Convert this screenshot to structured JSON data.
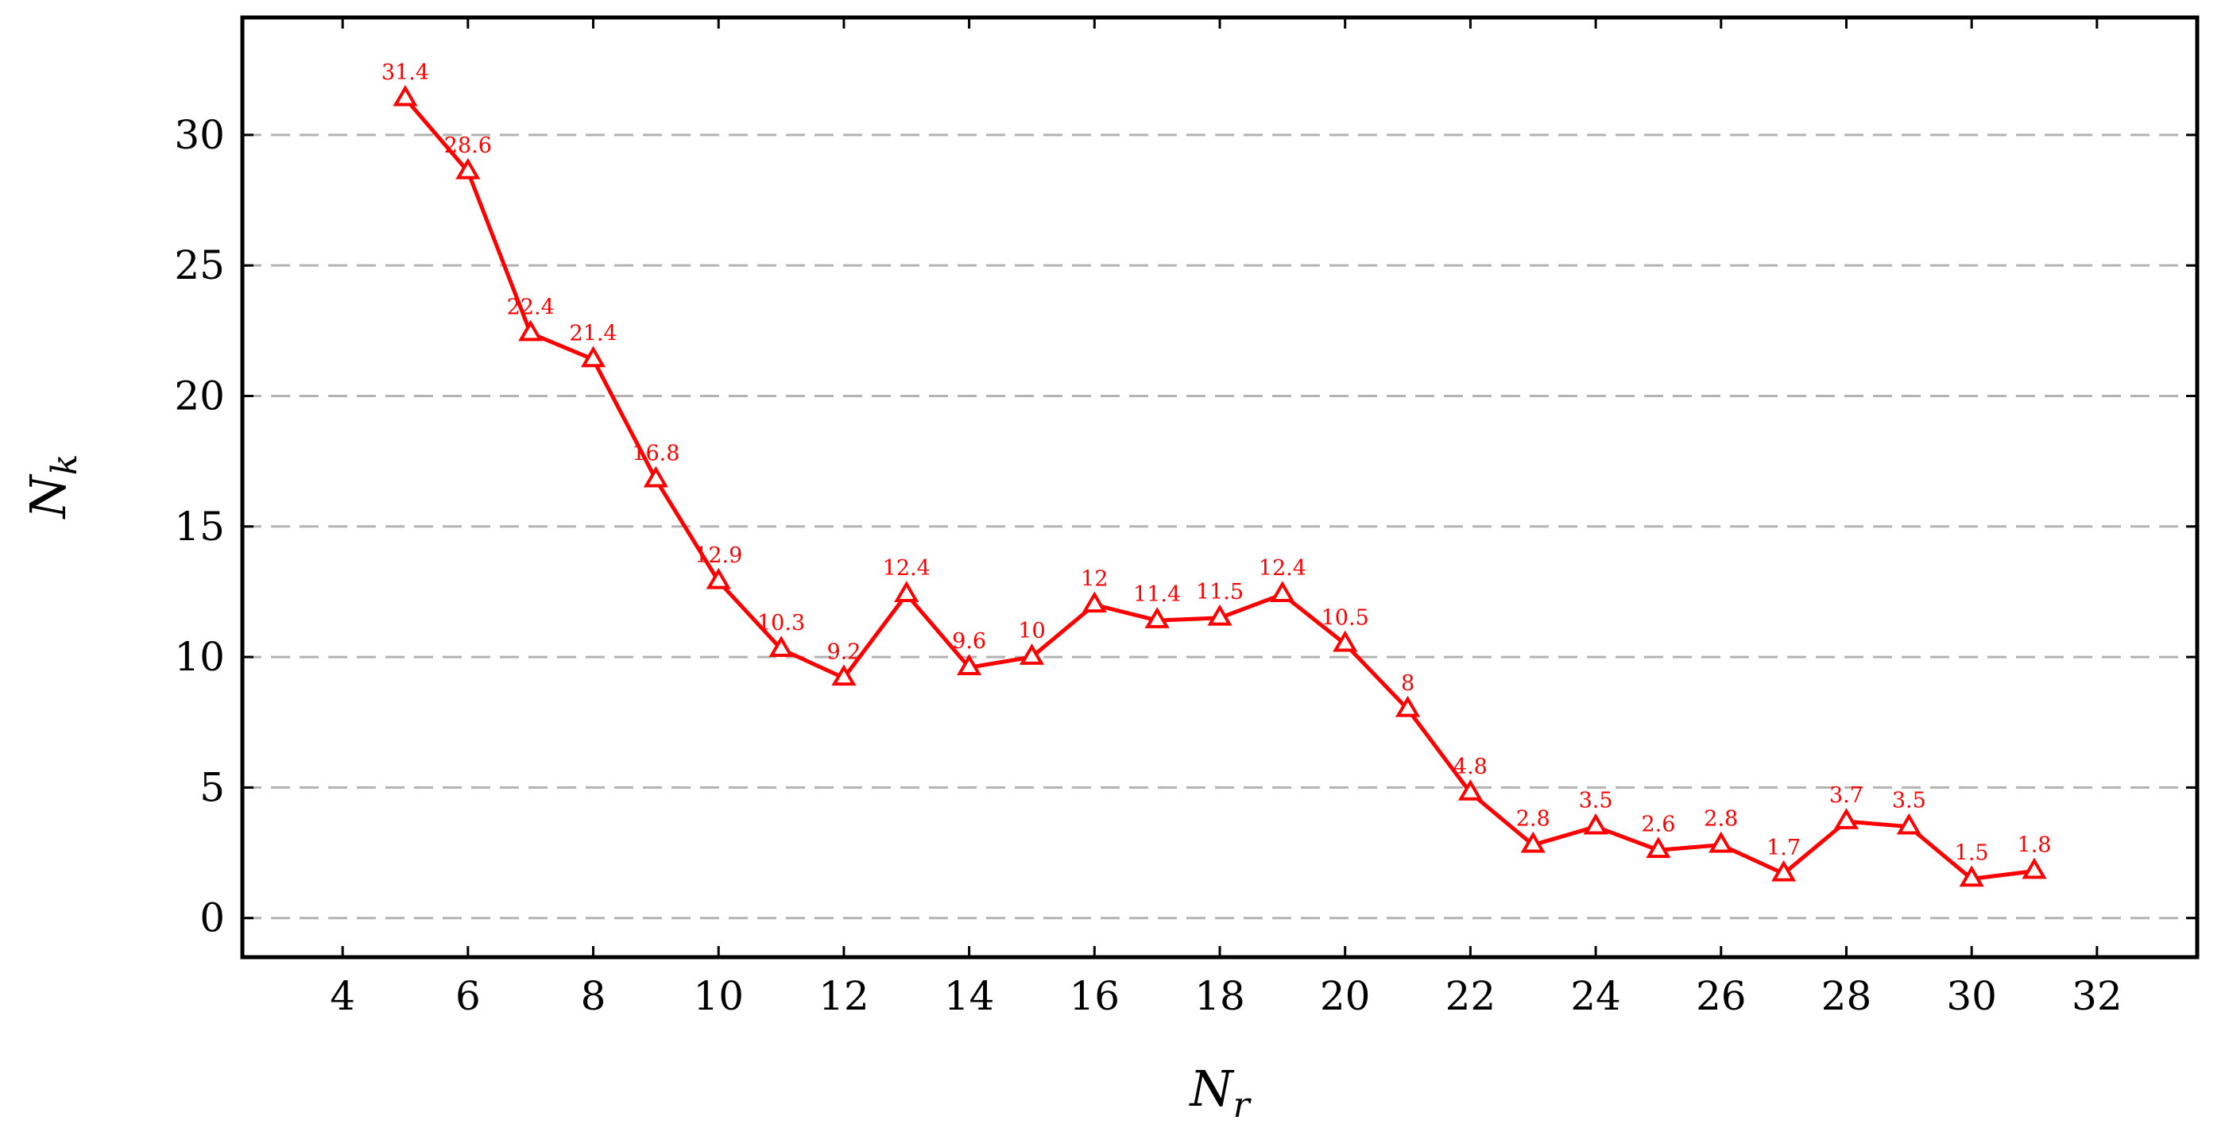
{
  "chart_data": {
    "type": "line",
    "xlabel_main": "N",
    "xlabel_sub": "r",
    "ylabel_main": "N",
    "ylabel_sub": "k",
    "xlim": [
      2.4,
      33.6
    ],
    "ylim": [
      -1.5,
      34.5
    ],
    "xticks": [
      4,
      6,
      8,
      10,
      12,
      14,
      16,
      18,
      20,
      22,
      24,
      26,
      28,
      30,
      32
    ],
    "yticks": [
      0,
      5,
      10,
      15,
      20,
      25,
      30
    ],
    "grid": "horizontal-dashed",
    "series": [
      {
        "color": "#ff0000",
        "marker": "triangle",
        "x": [
          5,
          6,
          7,
          8,
          9,
          10,
          11,
          12,
          13,
          14,
          15,
          16,
          17,
          18,
          19,
          20,
          21,
          22,
          23,
          24,
          25,
          26,
          27,
          28,
          29,
          30,
          31
        ],
        "values": [
          31.4,
          28.6,
          22.4,
          21.4,
          16.8,
          12.9,
          10.3,
          9.2,
          12.4,
          9.6,
          10,
          12,
          11.4,
          11.5,
          12.4,
          10.5,
          8,
          4.8,
          2.8,
          3.5,
          2.6,
          2.8,
          1.7,
          3.7,
          3.5,
          1.5,
          1.8
        ],
        "labels": [
          "31.4",
          "28.6",
          "22.4",
          "21.4",
          "16.8",
          "12.9",
          "10.3",
          "9.2",
          "12.4",
          "9.6",
          "10",
          "12",
          "11.4",
          "11.5",
          "12.4",
          "10.5",
          "8",
          "4.8",
          "2.8",
          "3.5",
          "2.6",
          "2.8",
          "1.7",
          "3.7",
          "3.5",
          "1.5",
          "1.8"
        ]
      }
    ]
  }
}
